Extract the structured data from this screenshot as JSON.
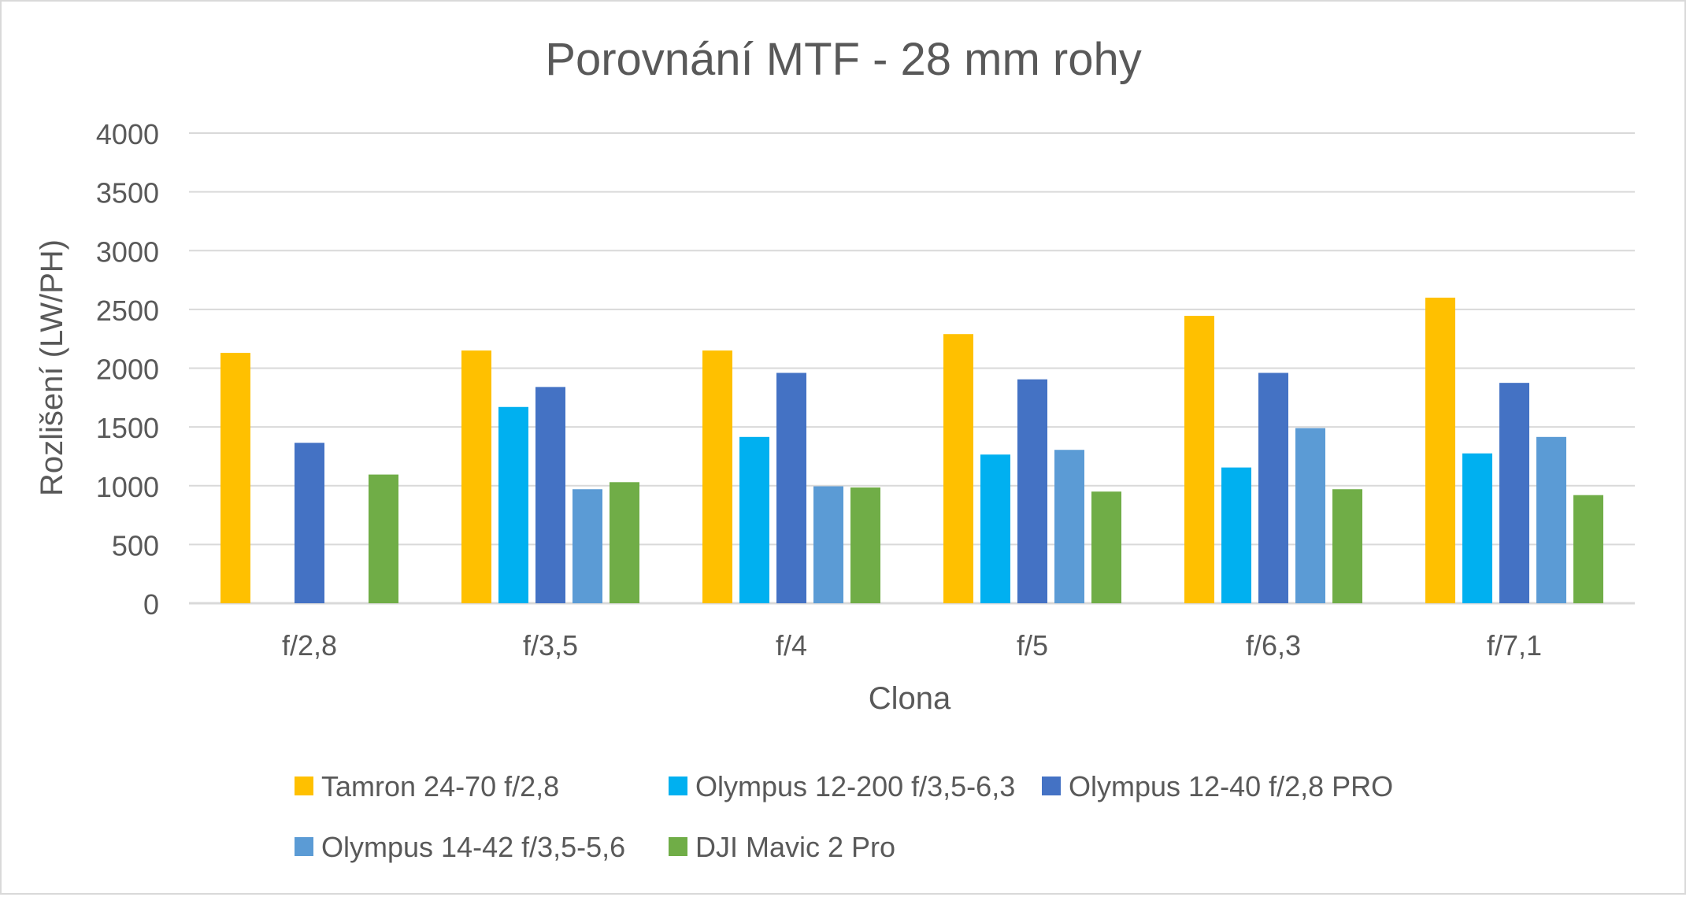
{
  "chart_data": {
    "type": "bar",
    "title": "Porovnání MTF - 28 mm rohy",
    "xlabel": "Clona",
    "ylabel": "Rozlišení (LW/PH)",
    "ylim": [
      0,
      4000
    ],
    "yticks": [
      0,
      500,
      1000,
      1500,
      2000,
      2500,
      3000,
      3500,
      4000
    ],
    "ytick_labels": [
      "0",
      "500",
      "1000",
      "1500",
      "2000",
      "2500",
      "3000",
      "3500",
      "4000"
    ],
    "grid": true,
    "legend_position": "bottom",
    "categories": [
      "f/2,8",
      "f/3,5",
      "f/4",
      "f/5",
      "f/6,3",
      "f/7,1"
    ],
    "series": [
      {
        "name": "Tamron 24-70 f/2,8",
        "color": "#FFC000",
        "values": [
          2130,
          2150,
          2150,
          2290,
          2445,
          2600
        ]
      },
      {
        "name": "Olympus 12-200 f/3,5-6,3",
        "color": "#00B0F0",
        "values": [
          null,
          1670,
          1415,
          1265,
          1155,
          1275
        ]
      },
      {
        "name": "Olympus 12-40 f/2,8 PRO",
        "color": "#4472C4",
        "values": [
          1365,
          1840,
          1960,
          1905,
          1960,
          1875
        ]
      },
      {
        "name": "Olympus 14-42 f/3,5-5,6",
        "color": "#5B9BD5",
        "values": [
          null,
          970,
          995,
          1305,
          1490,
          1415
        ]
      },
      {
        "name": "DJI Mavic 2 Pro",
        "color": "#70AD47",
        "values": [
          1095,
          1030,
          985,
          950,
          970,
          920
        ]
      }
    ]
  }
}
